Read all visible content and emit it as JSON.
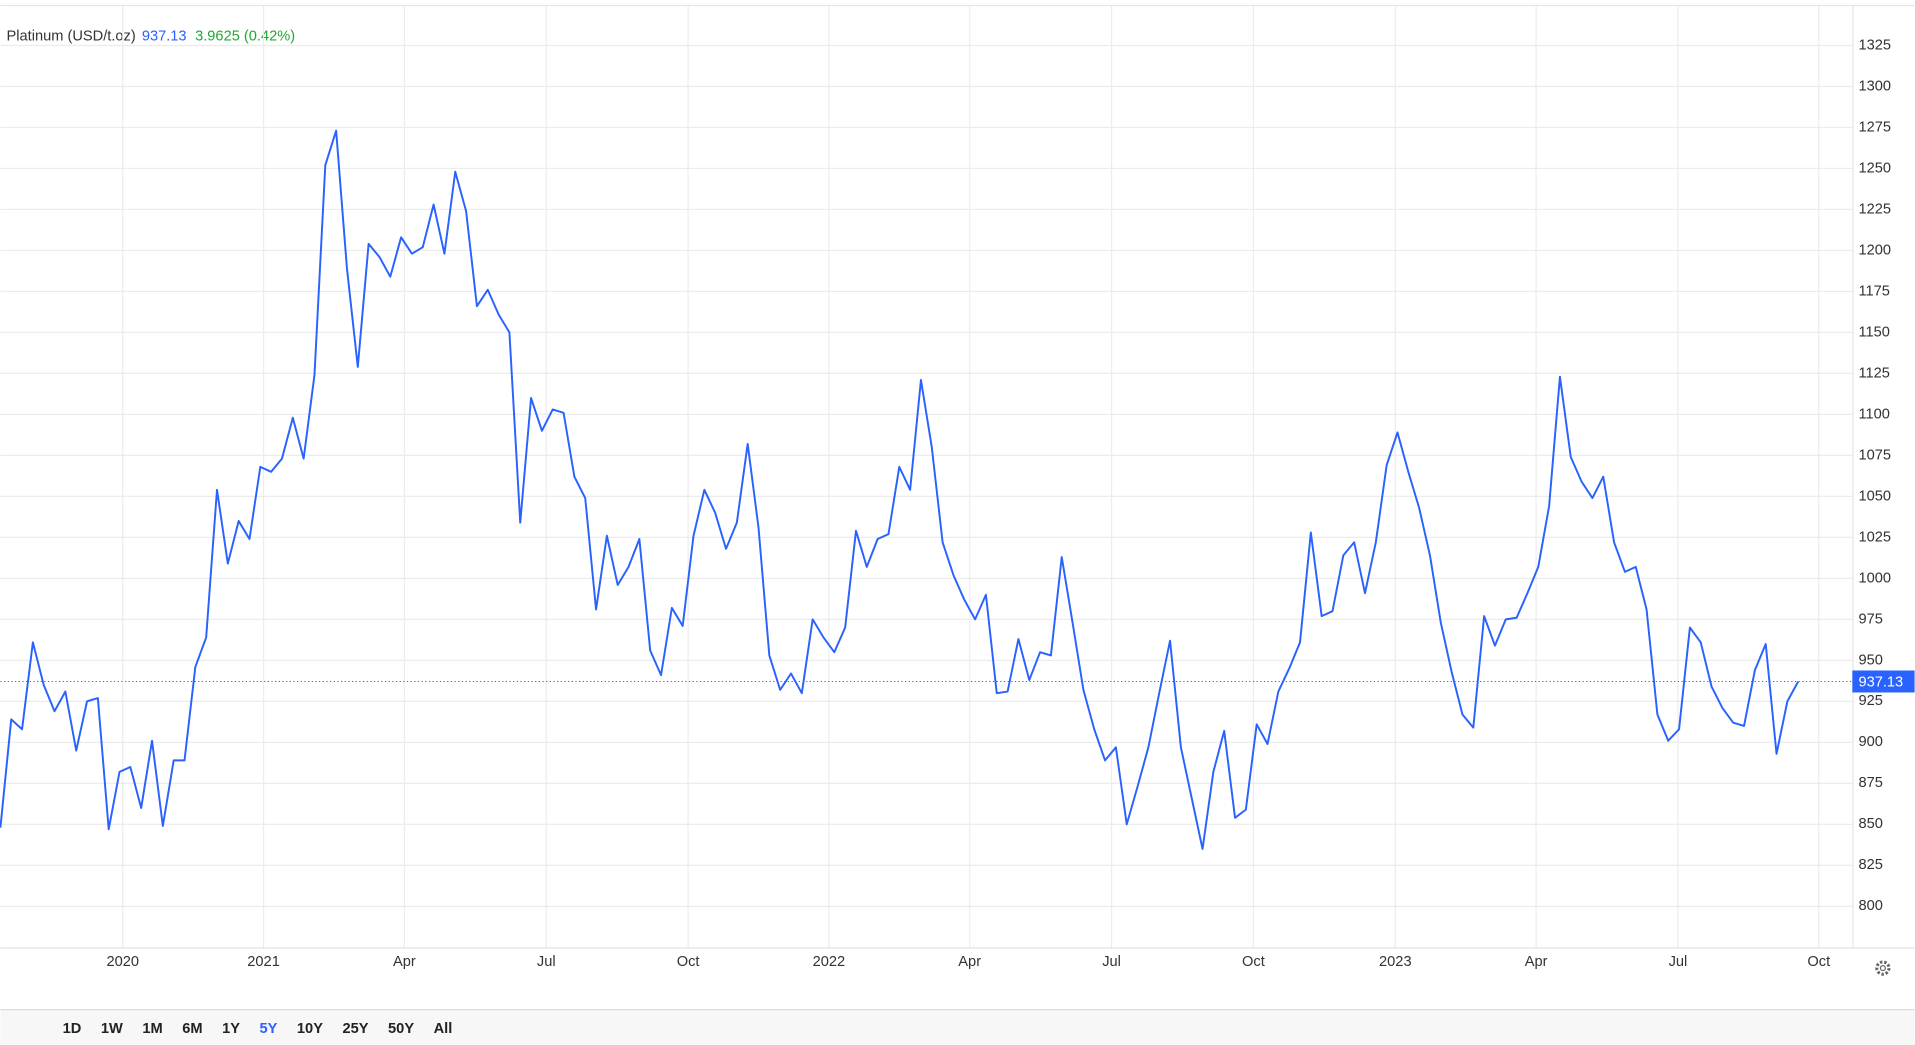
{
  "chart_data": {
    "type": "line",
    "title": "Platinum (USD/t.oz)",
    "last_price": 937.13,
    "change": "3.9625 (0.42%)",
    "series": [
      {
        "name": "Platinum (USD/t.oz)",
        "color": "#2962ff",
        "values": [
          848,
          914,
          908,
          961,
          935,
          919,
          931,
          895,
          925,
          927,
          847,
          882,
          885,
          860,
          901,
          849,
          889,
          889,
          946,
          964,
          1054,
          1009,
          1035,
          1024,
          1068,
          1065,
          1073,
          1098,
          1073,
          1124,
          1252,
          1273,
          1189,
          1129,
          1204,
          1196,
          1184,
          1208,
          1198,
          1202,
          1228,
          1198,
          1248,
          1224,
          1166,
          1176,
          1161,
          1150,
          1034,
          1110,
          1090,
          1103,
          1101,
          1062,
          1049,
          981,
          1026,
          996,
          1007,
          1024,
          956,
          941,
          982,
          971,
          1026,
          1054,
          1040,
          1018,
          1034,
          1082,
          1031,
          953,
          932,
          942,
          930,
          975,
          964,
          955,
          970,
          1029,
          1007,
          1024,
          1027,
          1068,
          1054,
          1121,
          1080,
          1022,
          1002,
          987,
          975,
          990,
          930,
          931,
          963,
          938,
          955,
          953,
          1013,
          973,
          932,
          908,
          889,
          897,
          850,
          873,
          897,
          930,
          962,
          897,
          866,
          835,
          882,
          907,
          854,
          859,
          911,
          899,
          931,
          945,
          961,
          1028,
          977,
          980,
          1014,
          1022,
          991,
          1022,
          1069,
          1089,
          1065,
          1043,
          1014,
          973,
          943,
          917,
          909,
          977,
          959,
          975,
          976,
          991,
          1007,
          1044,
          1123,
          1074,
          1059,
          1049,
          1062,
          1022,
          1004,
          1007,
          981,
          917,
          901,
          908,
          970,
          961,
          934,
          921,
          912,
          910,
          944,
          960,
          893,
          925,
          937.13
        ]
      }
    ],
    "xlim": [
      0,
      171
    ],
    "xticks": [
      {
        "value": 11.3,
        "label": "2020"
      },
      {
        "value": 24.3,
        "label": "2021"
      },
      {
        "value": 37.3,
        "label": "Apr"
      },
      {
        "value": 50.4,
        "label": "Jul"
      },
      {
        "value": 63.5,
        "label": "Oct"
      },
      {
        "value": 76.5,
        "label": "2022"
      },
      {
        "value": 89.5,
        "label": "Apr"
      },
      {
        "value": 102.6,
        "label": "Jul"
      },
      {
        "value": 115.7,
        "label": "Oct"
      },
      {
        "value": 128.8,
        "label": "2023"
      },
      {
        "value": 141.8,
        "label": "Apr"
      },
      {
        "value": 154.9,
        "label": "Jul"
      },
      {
        "value": 167.9,
        "label": "Oct"
      }
    ],
    "ylim": [
      775,
      1349
    ],
    "yticks": [
      800,
      825,
      850,
      875,
      900,
      925,
      950,
      975,
      1000,
      1025,
      1050,
      1075,
      1100,
      1125,
      1150,
      1175,
      1200,
      1225,
      1250,
      1275,
      1300,
      1325
    ],
    "grid": true,
    "ranges": [
      "1D",
      "1W",
      "1M",
      "6M",
      "1Y",
      "5Y",
      "10Y",
      "25Y",
      "50Y",
      "All"
    ],
    "active_range": "5Y"
  }
}
